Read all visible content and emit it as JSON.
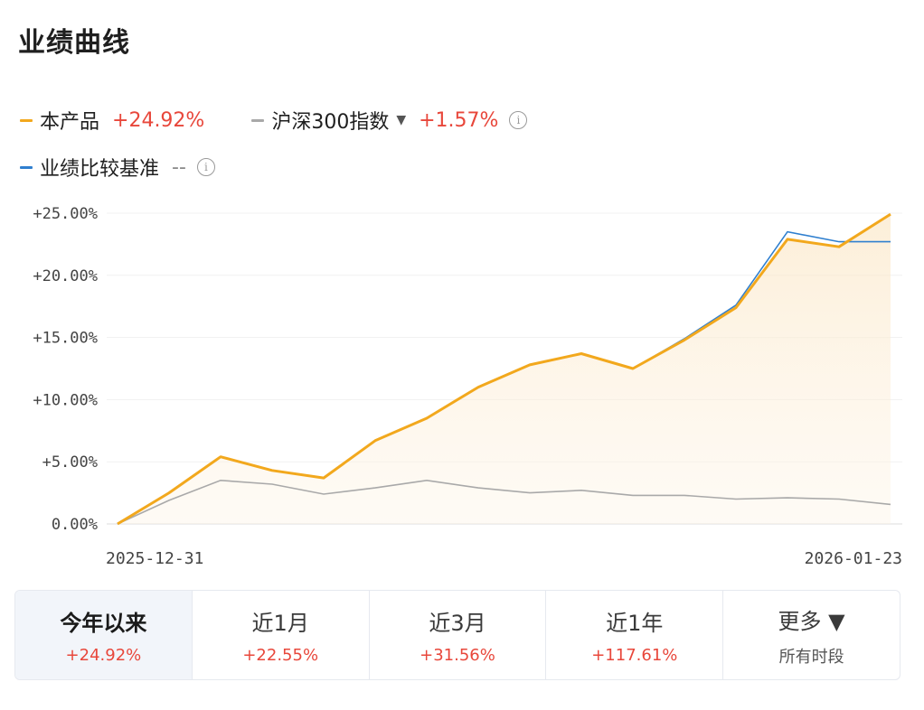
{
  "header": {
    "title": "业绩曲线"
  },
  "legend": {
    "product": {
      "name": "本产品",
      "value": "+24.92%",
      "color": "#f2a81d"
    },
    "index": {
      "name": "沪深300指数",
      "value": "+1.57%",
      "color": "#a9a9a9",
      "caret": "▼",
      "info": "i"
    },
    "benchmark": {
      "name": "业绩比较基准",
      "value": "--",
      "color": "#2f7fcf",
      "info": "i"
    }
  },
  "chart_data": {
    "type": "line",
    "x_start_label": "2025-12-31",
    "x_end_label": "2026-01-23",
    "ylim": [
      0,
      25
    ],
    "yticks": [
      "+25.00%",
      "+20.00%",
      "+15.00%",
      "+10.00%",
      "+5.00%",
      "0.00%"
    ],
    "ytick_values": [
      25,
      20,
      15,
      10,
      5,
      0
    ],
    "series": [
      {
        "name": "本产品",
        "color": "#f2a81d",
        "values": [
          0,
          2.5,
          5.4,
          4.3,
          3.7,
          6.7,
          8.5,
          11.0,
          12.8,
          13.7,
          12.5,
          14.8,
          17.4,
          22.9,
          22.3,
          24.92
        ]
      },
      {
        "name": "业绩比较基准",
        "color": "#2f7fcf",
        "values": [
          0,
          2.5,
          5.4,
          4.3,
          3.7,
          6.7,
          8.5,
          11.0,
          12.8,
          13.7,
          12.5,
          14.9,
          17.6,
          23.5,
          22.7,
          22.7
        ]
      },
      {
        "name": "沪深300指数",
        "color": "#a9a9a9",
        "values": [
          0,
          1.9,
          3.5,
          3.2,
          2.4,
          2.9,
          3.5,
          2.9,
          2.5,
          2.7,
          2.3,
          2.3,
          2.0,
          2.1,
          2.0,
          1.57
        ]
      }
    ]
  },
  "tabs": [
    {
      "label": "今年以来",
      "value": "+24.92%",
      "active": true
    },
    {
      "label": "近1月",
      "value": "+22.55%"
    },
    {
      "label": "近3月",
      "value": "+31.56%"
    },
    {
      "label": "近1年",
      "value": "+117.61%"
    },
    {
      "label": "更多 ▼",
      "value": "所有时段"
    }
  ]
}
